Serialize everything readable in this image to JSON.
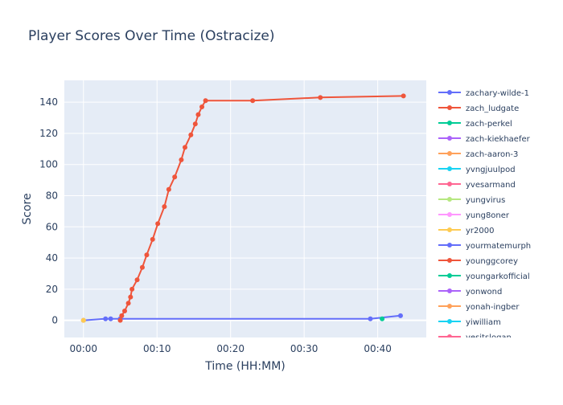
{
  "chart_data": {
    "type": "line",
    "title": "Player Scores Over Time (Ostracize)",
    "xlabel": "Time (HH:MM)",
    "ylabel": "Score",
    "xlim": [
      -2.6,
      46.6
    ],
    "ylim": [
      -11,
      154
    ],
    "x_tick_values": [
      0,
      10,
      20,
      30,
      40
    ],
    "x_tick_labels": [
      "00:00",
      "00:10",
      "00:20",
      "00:30",
      "00:40"
    ],
    "y_ticks": [
      0,
      20,
      40,
      60,
      80,
      100,
      120,
      140
    ],
    "grid": true,
    "legend_position": "right",
    "series": [
      {
        "name": "zachary-wilde-1",
        "color": "#636efa",
        "points": [
          [
            0.0,
            0
          ],
          [
            3.0,
            1
          ],
          [
            3.7,
            1
          ],
          [
            5.0,
            1
          ],
          [
            39.0,
            1
          ],
          [
            43.1,
            3
          ]
        ]
      },
      {
        "name": "zach_ludgate",
        "color": "#ef553b",
        "points": [
          [
            5.0,
            0
          ],
          [
            5.2,
            3
          ],
          [
            5.6,
            6
          ],
          [
            6.1,
            11
          ],
          [
            6.4,
            15
          ],
          [
            6.6,
            20
          ],
          [
            7.3,
            26
          ],
          [
            8.0,
            34
          ],
          [
            8.6,
            42
          ],
          [
            9.4,
            52
          ],
          [
            10.1,
            62
          ],
          [
            11.0,
            73
          ],
          [
            11.6,
            84
          ],
          [
            12.4,
            92
          ],
          [
            13.3,
            103
          ],
          [
            13.8,
            111
          ],
          [
            14.6,
            119
          ],
          [
            15.2,
            126
          ],
          [
            15.6,
            132
          ],
          [
            16.1,
            137
          ],
          [
            16.6,
            141
          ],
          [
            23.0,
            141
          ],
          [
            32.2,
            143
          ],
          [
            43.5,
            144
          ]
        ]
      },
      {
        "name": "zach-perkel",
        "color": "#00cc96",
        "points": [
          [
            40.6,
            1
          ]
        ]
      },
      {
        "name": "zach-kiekhaefer",
        "color": "#ab63fa",
        "points": []
      },
      {
        "name": "zach-aaron-3",
        "color": "#ffa15a",
        "points": [
          [
            0.0,
            0
          ]
        ]
      },
      {
        "name": "yvngjuulpod",
        "color": "#19d3f3",
        "points": []
      },
      {
        "name": "yvesarmand",
        "color": "#ff6692",
        "points": []
      },
      {
        "name": "yungvirus",
        "color": "#b6e880",
        "points": []
      },
      {
        "name": "yung8oner",
        "color": "#ff97ff",
        "points": []
      },
      {
        "name": "yr2000",
        "color": "#fecb52",
        "points": [
          [
            0.0,
            0
          ]
        ]
      },
      {
        "name": "yourmatemurph",
        "color": "#636efa",
        "points": []
      },
      {
        "name": "younggcorey",
        "color": "#ef553b",
        "points": []
      },
      {
        "name": "youngarkofficial",
        "color": "#00cc96",
        "points": []
      },
      {
        "name": "yonwond",
        "color": "#ab63fa",
        "points": []
      },
      {
        "name": "yonah-ingber",
        "color": "#ffa15a",
        "points": []
      },
      {
        "name": "yiwilliam",
        "color": "#19d3f3",
        "points": []
      },
      {
        "name": "yesitslogan",
        "color": "#ff6692",
        "points": []
      }
    ]
  }
}
